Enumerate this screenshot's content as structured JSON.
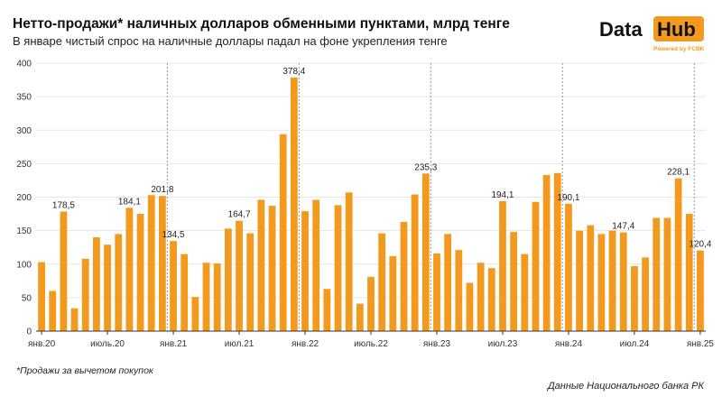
{
  "header": {
    "title": "Нетто-продажи* наличных долларов обменными пунктами, млрд тенге",
    "subtitle": "В январе чистый спрос на наличные доллары падал на фоне укрепления тенге"
  },
  "logo": {
    "word1": "Data",
    "word2": "Hub",
    "tagline": "Powered by FCBK"
  },
  "footnote": "*Продажи за вычетом покупок",
  "source": "Данные Национального банка РК",
  "colors": {
    "bar": "#f39a1e",
    "grid": "#e6e6e6",
    "divider": "#9a9a9a"
  },
  "chart_data": {
    "type": "bar",
    "x": [
      "2020-01",
      "2020-02",
      "2020-03",
      "2020-04",
      "2020-05",
      "2020-06",
      "2020-07",
      "2020-08",
      "2020-09",
      "2020-10",
      "2020-11",
      "2020-12",
      "2021-01",
      "2021-02",
      "2021-03",
      "2021-04",
      "2021-05",
      "2021-06",
      "2021-07",
      "2021-08",
      "2021-09",
      "2021-10",
      "2021-11",
      "2021-12",
      "2022-01",
      "2022-02",
      "2022-03",
      "2022-04",
      "2022-05",
      "2022-06",
      "2022-07",
      "2022-08",
      "2022-09",
      "2022-10",
      "2022-11",
      "2022-12",
      "2023-01",
      "2023-02",
      "2023-03",
      "2023-04",
      "2023-05",
      "2023-06",
      "2023-07",
      "2023-08",
      "2023-09",
      "2023-10",
      "2023-11",
      "2023-12",
      "2024-01",
      "2024-02",
      "2024-03",
      "2024-04",
      "2024-05",
      "2024-06",
      "2024-07",
      "2024-08",
      "2024-09",
      "2024-10",
      "2024-11",
      "2024-12",
      "2025-01"
    ],
    "values": [
      103,
      60,
      178.5,
      34,
      108,
      140,
      129,
      145,
      184.1,
      175,
      203,
      201.8,
      134.5,
      115,
      51,
      102,
      101,
      153,
      164.7,
      146,
      196,
      187,
      294,
      378.4,
      179,
      196,
      63,
      188,
      207,
      41,
      81,
      146,
      112,
      163,
      204,
      235.3,
      116,
      145,
      121,
      72,
      102,
      94,
      194.1,
      148,
      115,
      193,
      233,
      236,
      190.1,
      150,
      158,
      145,
      150,
      147.4,
      97,
      110,
      169,
      169,
      228.1,
      175,
      120.4
    ],
    "data_labels": [
      {
        "index": 2,
        "text": "178,5"
      },
      {
        "index": 8,
        "text": "184,1"
      },
      {
        "index": 11,
        "text": "201,8"
      },
      {
        "index": 12,
        "text": "134,5"
      },
      {
        "index": 18,
        "text": "164,7"
      },
      {
        "index": 23,
        "text": "378,4"
      },
      {
        "index": 35,
        "text": "235,3"
      },
      {
        "index": 42,
        "text": "194,1"
      },
      {
        "index": 48,
        "text": "190,1"
      },
      {
        "index": 53,
        "text": "147,4"
      },
      {
        "index": 58,
        "text": "228,1"
      },
      {
        "index": 60,
        "text": "120,4"
      }
    ],
    "x_ticks": [
      {
        "index": 0,
        "label": "янв.20"
      },
      {
        "index": 6,
        "label": "июль.20"
      },
      {
        "index": 12,
        "label": "янв.21"
      },
      {
        "index": 18,
        "label": "июл.21"
      },
      {
        "index": 24,
        "label": "янв.22"
      },
      {
        "index": 30,
        "label": "июль.22"
      },
      {
        "index": 36,
        "label": "янв.23"
      },
      {
        "index": 42,
        "label": "июл.23"
      },
      {
        "index": 48,
        "label": "янв.24"
      },
      {
        "index": 54,
        "label": "июл.24"
      },
      {
        "index": 60,
        "label": "янв.25"
      }
    ],
    "year_dividers": [
      12,
      24,
      36,
      48,
      60
    ],
    "yticks": [
      0,
      50,
      100,
      150,
      200,
      250,
      300,
      350,
      400
    ],
    "ylim": [
      0,
      400
    ],
    "grid": true
  }
}
